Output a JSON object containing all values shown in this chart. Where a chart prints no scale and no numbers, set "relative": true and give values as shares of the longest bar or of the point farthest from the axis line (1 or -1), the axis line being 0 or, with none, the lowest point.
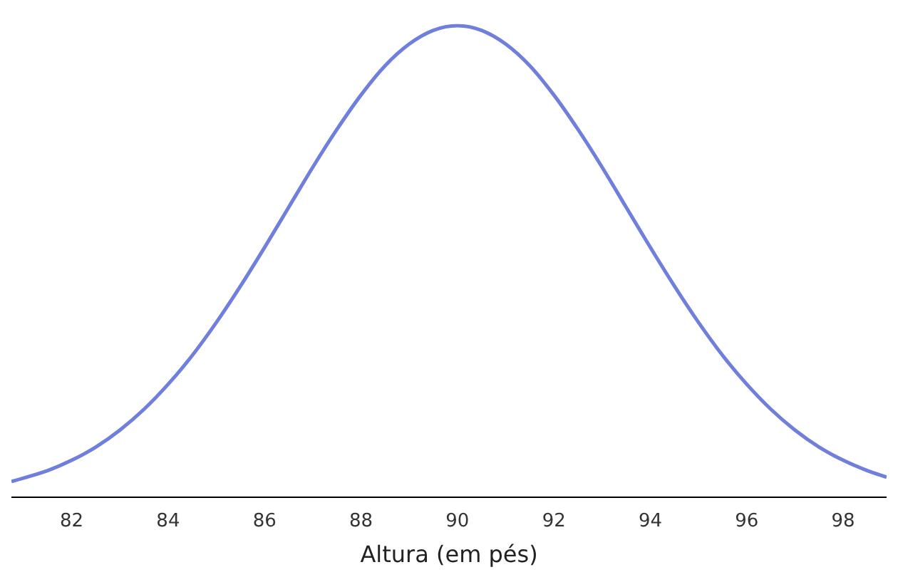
{
  "chart_data": {
    "type": "line",
    "xlabel": "Altura (em pés)",
    "relative": true,
    "legend": false,
    "grid": false,
    "marker": "none",
    "line_style": "solid",
    "xlim": [
      80.75,
      98.9
    ],
    "xticks": [
      82,
      84,
      86,
      88,
      90,
      92,
      94,
      96,
      98
    ],
    "series": [
      {
        "color": "#6f7fdb",
        "x": [
          80.75,
          81.5,
          82,
          82.5,
          83,
          83.5,
          84,
          84.5,
          85,
          85.5,
          86,
          86.5,
          87,
          87.5,
          88,
          88.5,
          89,
          89.5,
          90,
          90.5,
          91,
          91.5,
          92,
          92.5,
          93,
          93.5,
          94,
          94.5,
          95,
          95.5,
          96,
          96.5,
          97,
          97.5,
          98,
          98.5,
          98.9
        ],
        "values": [
          0.034,
          0.057,
          0.079,
          0.107,
          0.143,
          0.187,
          0.24,
          0.301,
          0.371,
          0.448,
          0.53,
          0.615,
          0.7,
          0.78,
          0.853,
          0.915,
          0.961,
          0.99,
          1,
          0.99,
          0.961,
          0.915,
          0.853,
          0.78,
          0.7,
          0.615,
          0.53,
          0.448,
          0.371,
          0.301,
          0.24,
          0.187,
          0.143,
          0.107,
          0.079,
          0.057,
          0.043
        ]
      }
    ]
  }
}
